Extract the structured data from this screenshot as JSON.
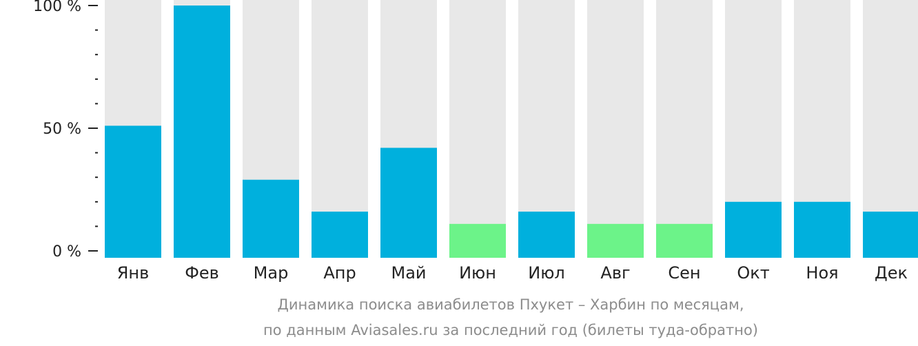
{
  "chart_data": {
    "type": "bar",
    "categories": [
      "Янв",
      "Фев",
      "Мар",
      "Апр",
      "Май",
      "Июн",
      "Июл",
      "Авг",
      "Сен",
      "Окт",
      "Ноя",
      "Дек"
    ],
    "values": [
      51,
      100,
      29,
      16,
      42,
      11,
      16,
      11,
      11,
      20,
      20,
      16
    ],
    "highlight": [
      false,
      false,
      false,
      false,
      false,
      true,
      false,
      true,
      true,
      false,
      false,
      false
    ],
    "ylim": [
      0,
      100
    ],
    "yticks": [
      {
        "value": 0,
        "label": "0 %"
      },
      {
        "value": 50,
        "label": "50 %"
      },
      {
        "value": 100,
        "label": "100 %"
      }
    ],
    "minor_tick_step": 10,
    "colors": {
      "bar": "#00b0dd",
      "bar_low": "#6cf389",
      "track": "#e8e8e8",
      "axis": "#222222",
      "text": "#222222"
    },
    "caption_lines": [
      "Динамика поиска авиабилетов Пхукет – Харбин по месяцам,",
      "по данным Aviasales.ru за последний год (билеты туда-обратно)"
    ]
  }
}
